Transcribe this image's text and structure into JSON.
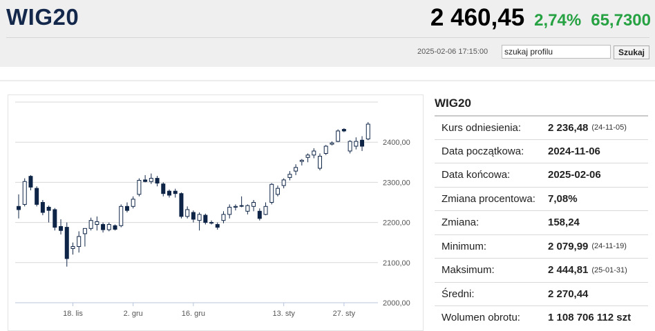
{
  "header": {
    "index_name": "WIG20",
    "price": "2 460,45",
    "change_percent": "2,74%",
    "change_value": "65,7300",
    "change_color": "#27a243",
    "timestamp": "2025-02-06 17:15:00",
    "search": {
      "value": "szukaj profilu",
      "button_label": "Szukaj"
    }
  },
  "stats": {
    "title": "WIG20",
    "rows": [
      {
        "label": "Kurs odniesienia:",
        "value": "2 236,48",
        "note": "(24-11-05)"
      },
      {
        "label": "Data początkowa:",
        "value": "2024-11-06",
        "note": ""
      },
      {
        "label": "Data końcowa:",
        "value": "2025-02-06",
        "note": ""
      },
      {
        "label": "Zmiana procentowa:",
        "value": "7,08%",
        "note": ""
      },
      {
        "label": "Zmiana:",
        "value": "158,24",
        "note": ""
      },
      {
        "label": "Minimum:",
        "value": "2 079,99",
        "note": "(24-11-19)"
      },
      {
        "label": "Maksimum:",
        "value": "2 444,81",
        "note": "(25-01-31)"
      },
      {
        "label": "Średni:",
        "value": "2 270,44",
        "note": ""
      },
      {
        "label": "Wolumen obrotu:",
        "value": "1 108 706 112 szt",
        "note": ""
      }
    ]
  },
  "chart_data": {
    "type": "candlestick",
    "ylim": [
      2000,
      2500
    ],
    "y_ticks": [
      2000,
      2100,
      2200,
      2300,
      2400
    ],
    "y_tick_labels": [
      "2000,00",
      "2100,00",
      "2200,00",
      "2300,00",
      "2400,00"
    ],
    "x_tick_labels": [
      {
        "label": "18. lis",
        "index": 9
      },
      {
        "label": "2. gru",
        "index": 19
      },
      {
        "label": "16. gru",
        "index": 29
      },
      {
        "label": "13. sty",
        "index": 44
      },
      {
        "label": "27. sty",
        "index": 54
      }
    ],
    "up_color": "#ffffff",
    "down_color": "#0f2547",
    "candles": [
      {
        "o": 2240,
        "h": 2270,
        "l": 2210,
        "c": 2232
      },
      {
        "o": 2245,
        "h": 2310,
        "l": 2240,
        "c": 2302
      },
      {
        "o": 2315,
        "h": 2318,
        "l": 2280,
        "c": 2288
      },
      {
        "o": 2285,
        "h": 2290,
        "l": 2240,
        "c": 2245
      },
      {
        "o": 2250,
        "h": 2256,
        "l": 2218,
        "c": 2225
      },
      {
        "o": 2238,
        "h": 2242,
        "l": 2200,
        "c": 2230
      },
      {
        "o": 2232,
        "h": 2236,
        "l": 2180,
        "c": 2188
      },
      {
        "o": 2190,
        "h": 2208,
        "l": 2170,
        "c": 2180
      },
      {
        "o": 2188,
        "h": 2200,
        "l": 2090,
        "c": 2110
      },
      {
        "o": 2135,
        "h": 2150,
        "l": 2120,
        "c": 2140
      },
      {
        "o": 2140,
        "h": 2178,
        "l": 2125,
        "c": 2165
      },
      {
        "o": 2172,
        "h": 2185,
        "l": 2140,
        "c": 2185
      },
      {
        "o": 2185,
        "h": 2212,
        "l": 2180,
        "c": 2205
      },
      {
        "o": 2195,
        "h": 2215,
        "l": 2180,
        "c": 2202
      },
      {
        "o": 2195,
        "h": 2200,
        "l": 2175,
        "c": 2182
      },
      {
        "o": 2182,
        "h": 2200,
        "l": 2178,
        "c": 2195
      },
      {
        "o": 2192,
        "h": 2195,
        "l": 2180,
        "c": 2183
      },
      {
        "o": 2192,
        "h": 2245,
        "l": 2188,
        "c": 2240
      },
      {
        "o": 2240,
        "h": 2250,
        "l": 2225,
        "c": 2230
      },
      {
        "o": 2240,
        "h": 2265,
        "l": 2235,
        "c": 2258
      },
      {
        "o": 2270,
        "h": 2310,
        "l": 2265,
        "c": 2305
      },
      {
        "o": 2306,
        "h": 2318,
        "l": 2300,
        "c": 2302
      },
      {
        "o": 2302,
        "h": 2322,
        "l": 2296,
        "c": 2310
      },
      {
        "o": 2310,
        "h": 2316,
        "l": 2290,
        "c": 2298
      },
      {
        "o": 2296,
        "h": 2300,
        "l": 2265,
        "c": 2272
      },
      {
        "o": 2278,
        "h": 2282,
        "l": 2262,
        "c": 2268
      },
      {
        "o": 2278,
        "h": 2284,
        "l": 2262,
        "c": 2272
      },
      {
        "o": 2272,
        "h": 2275,
        "l": 2210,
        "c": 2215
      },
      {
        "o": 2215,
        "h": 2240,
        "l": 2210,
        "c": 2232
      },
      {
        "o": 2225,
        "h": 2230,
        "l": 2200,
        "c": 2208
      },
      {
        "o": 2205,
        "h": 2225,
        "l": 2180,
        "c": 2220
      },
      {
        "o": 2218,
        "h": 2222,
        "l": 2195,
        "c": 2200
      },
      {
        "o": 2200,
        "h": 2205,
        "l": 2195,
        "c": 2200
      },
      {
        "o": 2195,
        "h": 2200,
        "l": 2182,
        "c": 2188
      },
      {
        "o": 2205,
        "h": 2228,
        "l": 2198,
        "c": 2220
      },
      {
        "o": 2220,
        "h": 2245,
        "l": 2210,
        "c": 2238
      },
      {
        "o": 2238,
        "h": 2245,
        "l": 2230,
        "c": 2240
      },
      {
        "o": 2242,
        "h": 2265,
        "l": 2238,
        "c": 2242
      },
      {
        "o": 2228,
        "h": 2245,
        "l": 2220,
        "c": 2242
      },
      {
        "o": 2240,
        "h": 2256,
        "l": 2228,
        "c": 2250
      },
      {
        "o": 2228,
        "h": 2235,
        "l": 2205,
        "c": 2210
      },
      {
        "o": 2220,
        "h": 2250,
        "l": 2218,
        "c": 2240
      },
      {
        "o": 2250,
        "h": 2298,
        "l": 2245,
        "c": 2295
      },
      {
        "o": 2270,
        "h": 2292,
        "l": 2265,
        "c": 2285
      },
      {
        "o": 2292,
        "h": 2310,
        "l": 2285,
        "c": 2306
      },
      {
        "o": 2312,
        "h": 2328,
        "l": 2305,
        "c": 2320
      },
      {
        "o": 2328,
        "h": 2345,
        "l": 2318,
        "c": 2337
      },
      {
        "o": 2352,
        "h": 2358,
        "l": 2342,
        "c": 2355
      },
      {
        "o": 2362,
        "h": 2372,
        "l": 2350,
        "c": 2368
      },
      {
        "o": 2368,
        "h": 2385,
        "l": 2360,
        "c": 2378
      },
      {
        "o": 2335,
        "h": 2372,
        "l": 2330,
        "c": 2365
      },
      {
        "o": 2372,
        "h": 2393,
        "l": 2368,
        "c": 2390
      },
      {
        "o": 2395,
        "h": 2402,
        "l": 2392,
        "c": 2398
      },
      {
        "o": 2402,
        "h": 2432,
        "l": 2400,
        "c": 2428
      },
      {
        "o": 2432,
        "h": 2435,
        "l": 2425,
        "c": 2428
      },
      {
        "o": 2378,
        "h": 2405,
        "l": 2372,
        "c": 2402
      },
      {
        "o": 2390,
        "h": 2412,
        "l": 2382,
        "c": 2402
      },
      {
        "o": 2405,
        "h": 2415,
        "l": 2378,
        "c": 2390
      },
      {
        "o": 2408,
        "h": 2450,
        "l": 2405,
        "c": 2445
      }
    ]
  }
}
